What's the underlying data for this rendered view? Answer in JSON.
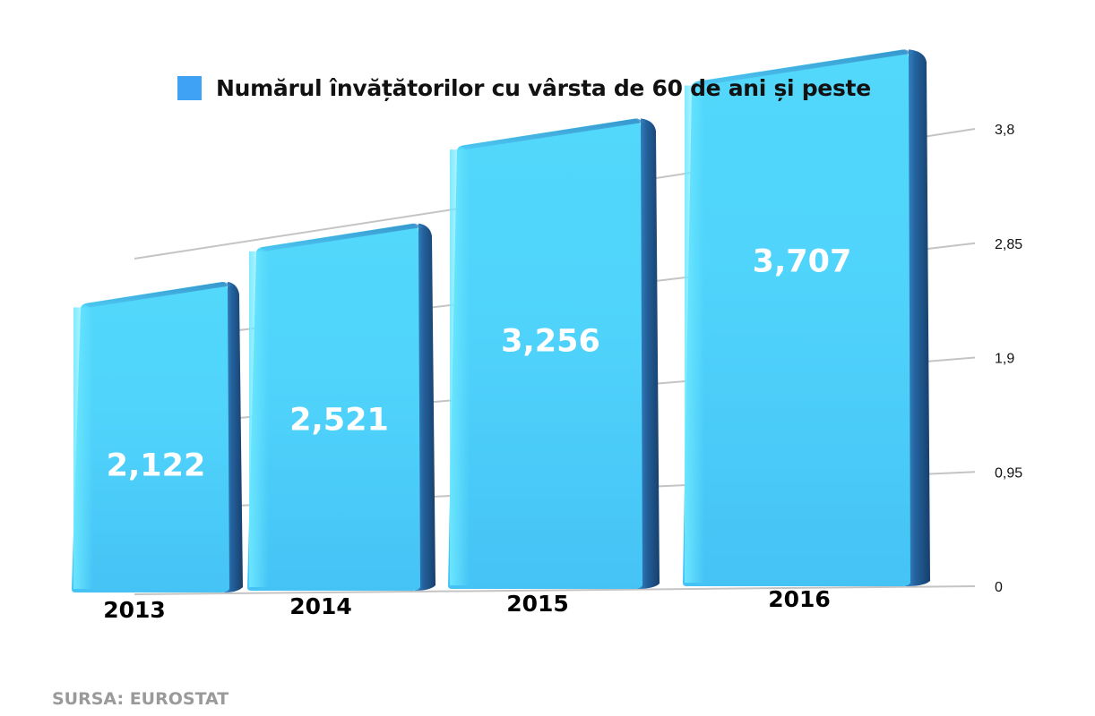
{
  "chart_data": {
    "type": "bar",
    "legend": "Numărul învățătorilor cu vârsta de 60 de ani și peste",
    "legend_position": "top",
    "categories": [
      "2013",
      "2014",
      "2015",
      "2016"
    ],
    "values": [
      2.122,
      2.521,
      3.256,
      3.707
    ],
    "data_labels": [
      "2,122",
      "2,521",
      "3,256",
      "3,707"
    ],
    "y_ticks": [
      0,
      0.95,
      1.9,
      2.85,
      3.8
    ],
    "y_tick_labels": [
      "0",
      "0,95",
      "1,9",
      "2,85",
      "3,8"
    ],
    "ylim": [
      0,
      3.8
    ],
    "y_axis_side": "right",
    "grid": true,
    "colors": {
      "bar": "#45c9f6",
      "bar_side": "#1e5a94",
      "legend_swatch": "#3fa2f5"
    }
  },
  "source": "SURSA: EUROSTAT"
}
